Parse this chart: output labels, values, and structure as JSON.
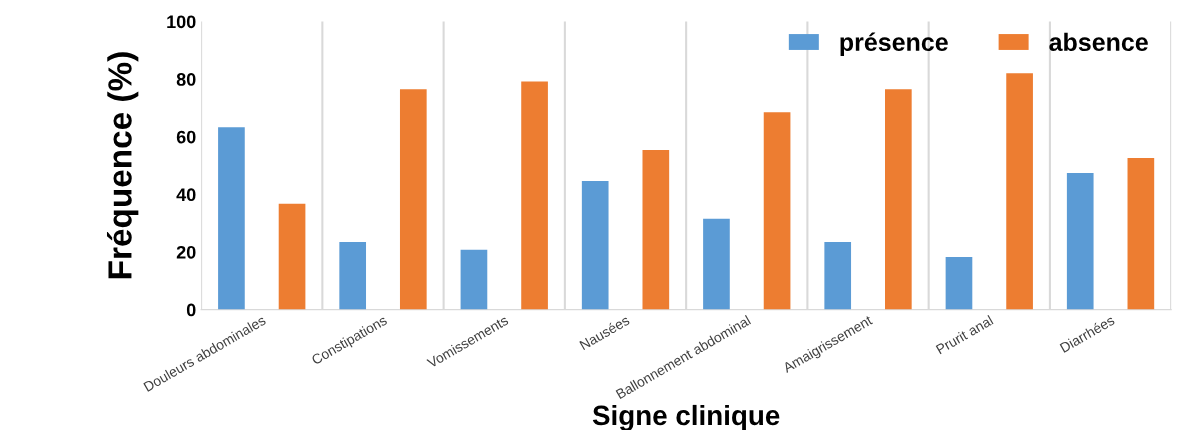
{
  "chart_data": {
    "type": "bar",
    "xlabel": "Signe clinique",
    "ylabel": "Fréquence (%)",
    "categories": [
      "Douleurs abdominales",
      "Constipations",
      "Vomissements",
      "Nausées",
      "Ballonnement abdominal",
      "Amaigrissement",
      "Prurit anal",
      "Diarrhées"
    ],
    "series": [
      {
        "name": "présence",
        "color": "#5b9bd5",
        "values": [
          63.3,
          23.5,
          20.8,
          44.6,
          31.5,
          23.5,
          18.3,
          47.4
        ]
      },
      {
        "name": "absence",
        "color": "#ed7d31",
        "values": [
          36.7,
          76.5,
          79.2,
          55.4,
          68.5,
          76.5,
          82,
          52.6
        ]
      }
    ],
    "ylim": [
      0,
      100
    ],
    "yticks": [
      0,
      20,
      40,
      60,
      80,
      100
    ],
    "grid": "x",
    "legend": "top right"
  }
}
